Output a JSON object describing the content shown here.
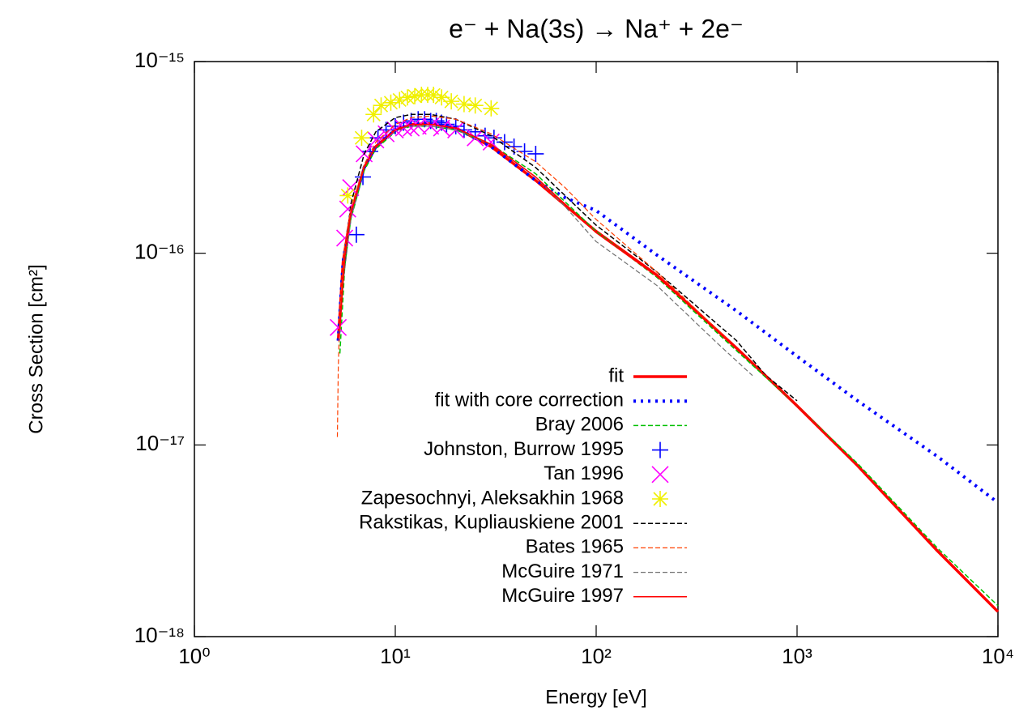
{
  "chart_data": {
    "type": "line",
    "title": "e⁻ + Na(3s) → Na⁺ + 2e⁻",
    "x_label": "Energy [eV]",
    "y_label": "Cross Section [cm²]",
    "xscale": "log",
    "yscale": "log",
    "xlim": [
      1,
      10000
    ],
    "ylim": [
      1e-18,
      1e-15
    ],
    "xticks": [
      {
        "value": 1,
        "label": "10⁰"
      },
      {
        "value": 10,
        "label": "10¹"
      },
      {
        "value": 100,
        "label": "10²"
      },
      {
        "value": 1000,
        "label": "10³"
      },
      {
        "value": 10000,
        "label": "10⁴"
      }
    ],
    "yticks": [
      {
        "value": 1e-18,
        "label": "10⁻¹⁸"
      },
      {
        "value": 1e-17,
        "label": "10⁻¹⁷"
      },
      {
        "value": 1e-16,
        "label": "10⁻¹⁶"
      },
      {
        "value": 1e-15,
        "label": "10⁻¹⁵"
      }
    ],
    "grid": false,
    "legend": "inside-lower-center",
    "series": [
      {
        "name": "fit",
        "color": "#ff0000",
        "style": "solid",
        "width": 3.5,
        "x": [
          5.2,
          5.5,
          6,
          7,
          8,
          10,
          12,
          15,
          20,
          30,
          50,
          100,
          200,
          500,
          1000,
          2000,
          5000,
          10000
        ],
        "values": [
          3.5e-17,
          9e-17,
          1.6e-16,
          2.8e-16,
          3.6e-16,
          4.4e-16,
          4.7e-16,
          4.75e-16,
          4.5e-16,
          3.6e-16,
          2.4e-16,
          1.3e-16,
          7.7e-17,
          3.2e-17,
          1.6e-17,
          7.8e-18,
          2.8e-18,
          1.35e-18
        ]
      },
      {
        "name": "fit with core correction",
        "color": "#0000ff",
        "style": "dotted",
        "width": 4,
        "x": [
          5.2,
          5.5,
          6,
          7,
          8,
          10,
          12,
          15,
          20,
          30,
          50,
          70,
          100,
          200,
          500,
          1000,
          2000,
          5000,
          10000
        ],
        "values": [
          3.5e-17,
          9e-17,
          1.6e-16,
          2.8e-16,
          3.6e-16,
          4.4e-16,
          4.7e-16,
          4.75e-16,
          4.5e-16,
          3.6e-16,
          2.4e-16,
          1.95e-16,
          1.67e-16,
          9.8e-17,
          5e-17,
          2.9e-17,
          1.7e-17,
          8.7e-18,
          5e-18
        ]
      },
      {
        "name": "Bray 2006",
        "color": "#00c000",
        "style": "dashed",
        "width": 1.5,
        "x": [
          5.3,
          5.6,
          6,
          7,
          8,
          10,
          12,
          15,
          20,
          30,
          50,
          100,
          200,
          500,
          1000,
          2000,
          5000,
          10000
        ],
        "values": [
          3e-17,
          8.5e-17,
          1.5e-16,
          2.7e-16,
          3.5e-16,
          4.3e-16,
          4.6e-16,
          4.6e-16,
          4.4e-16,
          3.7e-16,
          2.6e-16,
          1.3e-16,
          7.5e-17,
          3.1e-17,
          1.6e-17,
          8e-18,
          2.9e-18,
          1.45e-18
        ]
      },
      {
        "name": "Johnston, Burrow 1995",
        "color": "#0000ff",
        "marker": "plus",
        "x": [
          6.4,
          6.9,
          7.5,
          8.2,
          9,
          10,
          11,
          12,
          13,
          14,
          15,
          16,
          17,
          18,
          20,
          22,
          25,
          28,
          31,
          35,
          39,
          44,
          50
        ],
        "values": [
          1.25e-16,
          2.5e-16,
          3.4e-16,
          4e-16,
          4.4e-16,
          4.6e-16,
          4.8e-16,
          4.9e-16,
          5e-16,
          5e-16,
          4.9e-16,
          4.9e-16,
          4.8e-16,
          4.7e-16,
          4.6e-16,
          4.4e-16,
          4.3e-16,
          4.1e-16,
          4e-16,
          3.8e-16,
          3.6e-16,
          3.4e-16,
          3.3e-16
        ]
      },
      {
        "name": "Tan 1996",
        "color": "#ff00ff",
        "marker": "cross",
        "x": [
          5.2,
          5.6,
          5.8,
          6,
          7,
          8,
          9,
          10,
          11,
          12,
          13,
          15,
          17,
          20,
          25,
          30
        ],
        "values": [
          4.1e-17,
          1.2e-16,
          1.7e-16,
          2.2e-16,
          3.3e-16,
          3.9e-16,
          4.2e-16,
          4.4e-16,
          4.5e-16,
          4.5e-16,
          4.6e-16,
          4.6e-16,
          4.5e-16,
          4.4e-16,
          4e-16,
          3.8e-16
        ]
      },
      {
        "name": "Zapesochnyi, Aleksakhin 1968",
        "color": "#f0f000",
        "marker": "star",
        "x": [
          5.8,
          6.8,
          7.8,
          8.5,
          9.5,
          10.5,
          11.5,
          12.5,
          13.5,
          14.5,
          15.5,
          17,
          19,
          22,
          25,
          30
        ],
        "values": [
          2e-16,
          4e-16,
          5.3e-16,
          5.9e-16,
          6.1e-16,
          6.3e-16,
          6.5e-16,
          6.6e-16,
          6.7e-16,
          6.7e-16,
          6.7e-16,
          6.5e-16,
          6.2e-16,
          6e-16,
          5.9e-16,
          5.7e-16
        ]
      },
      {
        "name": "Rakstikas, Kupliauskiene 2001",
        "color": "#000000",
        "style": "dashed",
        "width": 1.5,
        "x": [
          5.6,
          6,
          7,
          8,
          10,
          12,
          15,
          20,
          30,
          50,
          100,
          200,
          500,
          700,
          1000
        ],
        "values": [
          9e-17,
          1.8e-16,
          3.3e-16,
          4.3e-16,
          5.1e-16,
          5.3e-16,
          5.3e-16,
          5e-16,
          4.1e-16,
          2.8e-16,
          1.4e-16,
          8e-17,
          3.5e-17,
          2.3e-17,
          1.7e-17
        ]
      },
      {
        "name": "Bates 1965",
        "color": "#ff4000",
        "style": "dashed",
        "width": 1.2,
        "x": [
          5.15,
          5.2,
          5.3,
          5.6,
          6,
          7,
          8,
          10,
          12,
          15,
          20,
          30,
          50,
          70,
          100,
          200,
          500,
          1000
        ],
        "values": [
          1.1e-17,
          2.5e-17,
          5e-17,
          1.1e-16,
          1.7e-16,
          2.9e-16,
          3.8e-16,
          4.7e-16,
          5.1e-16,
          5.2e-16,
          5e-16,
          4.2e-16,
          3e-16,
          2.2e-16,
          1.5e-16,
          8e-17,
          3.2e-17,
          1.6e-17
        ]
      },
      {
        "name": "McGuire 1971",
        "color": "#707070",
        "style": "dashed",
        "width": 1.2,
        "x": [
          5.5,
          6,
          7,
          8,
          10,
          12,
          15,
          20,
          30,
          50,
          70,
          100,
          200,
          400,
          600
        ],
        "values": [
          7e-17,
          1.5e-16,
          2.8e-16,
          3.6e-16,
          4.4e-16,
          4.6e-16,
          4.6e-16,
          4.4e-16,
          3.7e-16,
          2.5e-16,
          1.75e-16,
          1.15e-16,
          6.8e-17,
          3.4e-17,
          2.3e-17
        ]
      },
      {
        "name": "McGuire 1997",
        "color": "#ff0000",
        "style": "solid",
        "width": 1.5,
        "x": [
          5.3,
          5.6,
          6,
          7,
          8,
          10,
          12,
          15,
          20,
          30,
          50,
          100,
          200,
          500,
          1000,
          2000,
          5000,
          10000
        ],
        "values": [
          4e-17,
          9.5e-17,
          1.6e-16,
          2.8e-16,
          3.6e-16,
          4.4e-16,
          4.7e-16,
          4.7e-16,
          4.5e-16,
          3.7e-16,
          2.5e-16,
          1.28e-16,
          7.6e-17,
          3.2e-17,
          1.6e-17,
          7.8e-18,
          2.8e-18,
          1.35e-18
        ]
      }
    ]
  }
}
